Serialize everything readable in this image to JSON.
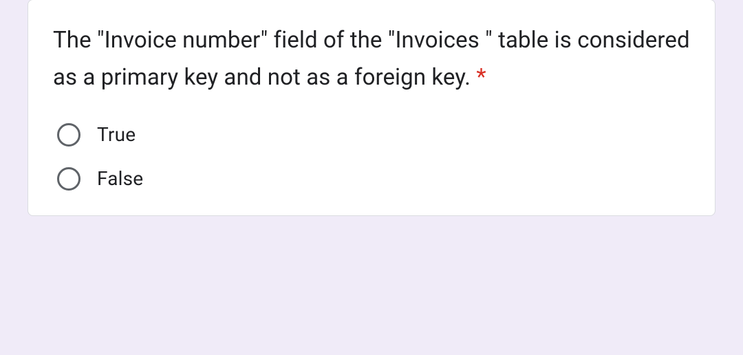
{
  "question": {
    "text": "The \"Invoice number\" field of the \"Invoices \" table is considered as a primary key and not as a foreign key. ",
    "required_marker": "*",
    "options": [
      {
        "label": "True",
        "selected": false
      },
      {
        "label": "False",
        "selected": false
      }
    ]
  },
  "styling": {
    "background_color": "#f0ebf8",
    "card_background": "#ffffff",
    "card_border_color": "#dadce0",
    "text_color": "#202124",
    "required_color": "#d93025",
    "radio_border_color": "#5f6368",
    "question_fontsize": 33,
    "option_fontsize": 28,
    "radio_size": 34
  }
}
